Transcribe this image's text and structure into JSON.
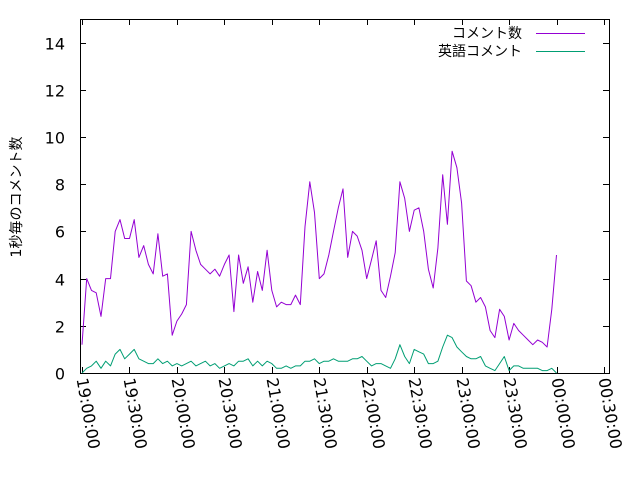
{
  "chart_data": {
    "type": "line",
    "title": "",
    "xlabel": "",
    "ylabel": "1秒毎のコメント数",
    "ylim": [
      0,
      15
    ],
    "yticks": [
      "0",
      "2",
      "4",
      "6",
      "8",
      "10",
      "12",
      "14"
    ],
    "xticks": [
      "19:00:00",
      "19:30:00",
      "20:00:00",
      "20:30:00",
      "21:00:00",
      "21:30:00",
      "22:00:00",
      "22:30:00",
      "23:00:00",
      "23:30:00",
      "00:00:00",
      "00:30:00"
    ],
    "x_start": "19:00:00",
    "x_step_minutes": 3,
    "legend_position": "top-right",
    "series": [
      {
        "name": "コメント数",
        "color": "#9400d3",
        "values": [
          1.2,
          4.0,
          3.5,
          3.4,
          2.4,
          4.0,
          4.0,
          6.0,
          6.5,
          5.7,
          5.7,
          6.5,
          4.9,
          5.4,
          4.6,
          4.2,
          5.9,
          4.1,
          4.2,
          1.6,
          2.2,
          2.5,
          2.9,
          6.0,
          5.2,
          4.6,
          4.4,
          4.2,
          4.4,
          4.1,
          4.6,
          5.0,
          2.6,
          5.0,
          3.8,
          4.5,
          3.0,
          4.3,
          3.5,
          5.2,
          3.5,
          2.8,
          3.0,
          2.9,
          2.9,
          3.3,
          2.9,
          6.2,
          8.1,
          6.8,
          4.0,
          4.2,
          5.0,
          6.0,
          7.0,
          7.8,
          4.9,
          6.0,
          5.8,
          5.2,
          4.0,
          4.8,
          5.6,
          3.5,
          3.2,
          4.1,
          5.1,
          8.1,
          7.4,
          6.0,
          6.9,
          7.0,
          6.0,
          4.4,
          3.6,
          5.3,
          8.4,
          6.3,
          9.4,
          8.7,
          7.2,
          3.9,
          3.7,
          3.0,
          3.2,
          2.8,
          1.8,
          1.5,
          2.7,
          2.4,
          1.4,
          2.1,
          1.8,
          1.6,
          1.4,
          1.2,
          1.4,
          1.3,
          1.1,
          2.7,
          5.0
        ]
      },
      {
        "name": "英語コメント",
        "color": "#009e73",
        "values": [
          0.0,
          0.2,
          0.3,
          0.5,
          0.2,
          0.5,
          0.3,
          0.8,
          1.0,
          0.6,
          0.8,
          1.0,
          0.6,
          0.5,
          0.4,
          0.4,
          0.6,
          0.4,
          0.5,
          0.3,
          0.4,
          0.3,
          0.4,
          0.5,
          0.3,
          0.4,
          0.5,
          0.3,
          0.4,
          0.2,
          0.3,
          0.4,
          0.3,
          0.5,
          0.5,
          0.6,
          0.3,
          0.5,
          0.3,
          0.5,
          0.4,
          0.2,
          0.2,
          0.3,
          0.2,
          0.3,
          0.3,
          0.5,
          0.5,
          0.6,
          0.4,
          0.5,
          0.5,
          0.6,
          0.5,
          0.5,
          0.5,
          0.6,
          0.6,
          0.7,
          0.5,
          0.3,
          0.4,
          0.4,
          0.3,
          0.2,
          0.6,
          1.2,
          0.7,
          0.4,
          1.0,
          0.9,
          0.8,
          0.4,
          0.4,
          0.5,
          1.1,
          1.6,
          1.5,
          1.1,
          0.9,
          0.7,
          0.6,
          0.6,
          0.7,
          0.3,
          0.2,
          0.1,
          0.4,
          0.7,
          0.1,
          0.3,
          0.3,
          0.2,
          0.2,
          0.2,
          0.2,
          0.1,
          0.1,
          0.2,
          0.0
        ]
      }
    ]
  }
}
